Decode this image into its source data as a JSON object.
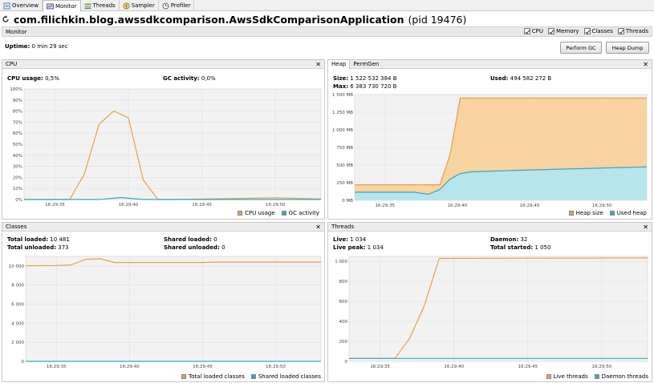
{
  "tabs": [
    {
      "label": "Overview",
      "icon": "overview-icon"
    },
    {
      "label": "Monitor",
      "icon": "monitor-icon",
      "active": true
    },
    {
      "label": "Threads",
      "icon": "threads-icon"
    },
    {
      "label": "Sampler",
      "icon": "sampler-icon"
    },
    {
      "label": "Profiler",
      "icon": "profiler-icon"
    }
  ],
  "app": {
    "name": "com.filichkin.blog.awssdkcomparison.AwsSdkComparisonApplication",
    "pid": "(pid 19476)"
  },
  "monitor": {
    "label": "Monitor",
    "checks": [
      "CPU",
      "Memory",
      "Classes",
      "Threads"
    ],
    "uptime_label": "Uptime:",
    "uptime_value": "0 min 29 sec",
    "perform_gc": "Perform GC",
    "heap_dump": "Heap Dump"
  },
  "colors": {
    "orange": "#e8a050",
    "orange_fill": "#f9cf97",
    "blue": "#3aa5c2",
    "blue_fill": "#aee7f3",
    "plot_bg": "#f2f2f2",
    "grid": "#e0e0e0"
  },
  "cpu_panel": {
    "title": "CPU",
    "usage_label": "CPU usage:",
    "usage_value": "0,5%",
    "gc_label": "GC activity:",
    "gc_value": "0,0%",
    "legend": [
      "CPU usage",
      "GC activity"
    ]
  },
  "heap_panel": {
    "tabs": [
      "Heap",
      "PermGen"
    ],
    "size_label": "Size:",
    "size_value": "1 522 532 384 B",
    "max_label": "Max:",
    "max_value": "6 383 730 720 B",
    "used_label": "Used:",
    "used_value": "494 582 272 B",
    "legend": [
      "Heap size",
      "Used heap"
    ]
  },
  "classes_panel": {
    "title": "Classes",
    "total_loaded_label": "Total loaded:",
    "total_loaded_value": "10 481",
    "total_unloaded_label": "Total unloaded:",
    "total_unloaded_value": "373",
    "shared_loaded_label": "Shared loaded:",
    "shared_loaded_value": "0",
    "shared_unloaded_label": "Shared unloaded:",
    "shared_unloaded_value": "0",
    "legend": [
      "Total loaded classes",
      "Shared loaded classes"
    ]
  },
  "threads_panel": {
    "title": "Threads",
    "live_label": "Live:",
    "live_value": "1 034",
    "live_peak_label": "Live peak:",
    "live_peak_value": "1 034",
    "daemon_label": "Daemon:",
    "daemon_value": "32",
    "total_started_label": "Total started:",
    "total_started_value": "1 050",
    "legend": [
      "Live threads",
      "Daemon threads"
    ]
  },
  "chart_data": [
    {
      "id": "cpu",
      "type": "line",
      "x_ticks": [
        "16:29:35",
        "16:29:40",
        "16:29:45",
        "16:29:50"
      ],
      "x_tick_seconds": [
        35,
        40,
        45,
        50
      ],
      "xlim": [
        32.9,
        53.1
      ],
      "ylim": [
        0,
        100
      ],
      "y_ticks": [
        0,
        10,
        20,
        30,
        40,
        50,
        60,
        70,
        80,
        90,
        100
      ],
      "y_tick_labels": [
        "0%",
        "10%",
        "20%",
        "30%",
        "40%",
        "50%",
        "60%",
        "70%",
        "80%",
        "90%",
        "100%"
      ],
      "series": [
        {
          "name": "CPU usage",
          "color": "#e8a050",
          "x": [
            32.9,
            36,
            37,
            38,
            39,
            40,
            41,
            42,
            43,
            50,
            53.1
          ],
          "y": [
            0,
            0,
            23,
            68,
            80,
            74,
            18,
            0,
            0,
            1.5,
            0.5
          ]
        },
        {
          "name": "GC activity",
          "color": "#3aa5c2",
          "x": [
            32.9,
            38,
            39.5,
            41,
            53.1
          ],
          "y": [
            0,
            0,
            1.8,
            0,
            0
          ]
        }
      ]
    },
    {
      "id": "heap",
      "type": "area",
      "x_ticks": [
        "16:29:35",
        "16:29:40",
        "16:29:45",
        "16:29:50"
      ],
      "x_tick_seconds": [
        35,
        40,
        45,
        50
      ],
      "xlim": [
        32.9,
        53.1
      ],
      "ylim": [
        0,
        1500
      ],
      "y_ticks": [
        0,
        250,
        500,
        750,
        1000,
        1250,
        1500
      ],
      "y_tick_labels": [
        "0 MB",
        "250 MB",
        "500 MB",
        "750 MB",
        "1 000 MB",
        "1 250 MB",
        "1 500 MB"
      ],
      "series": [
        {
          "name": "Heap size",
          "color": "#e8a050",
          "fill": "#f9cf97",
          "x": [
            32.9,
            38.8,
            39.5,
            40.2,
            53.1
          ],
          "y": [
            220,
            220,
            650,
            1450,
            1450
          ]
        },
        {
          "name": "Used heap",
          "color": "#3aa5c2",
          "fill": "#aee7f3",
          "x": [
            32.9,
            37,
            38,
            38.8,
            39.5,
            40.2,
            41,
            44,
            53.1
          ],
          "y": [
            115,
            115,
            85,
            155,
            300,
            380,
            405,
            425,
            475
          ]
        }
      ]
    },
    {
      "id": "classes",
      "type": "line",
      "x_ticks": [
        "16:29:35",
        "16:29:40",
        "16:29:45",
        "16:29:50"
      ],
      "x_tick_seconds": [
        35,
        40,
        45,
        50
      ],
      "xlim": [
        32.9,
        53.1
      ],
      "ylim": [
        0,
        11000
      ],
      "y_ticks": [
        0,
        2000,
        4000,
        6000,
        8000,
        10000
      ],
      "y_tick_labels": [
        "0",
        "2 000",
        "4 000",
        "6 000",
        "8 000",
        "10 000"
      ],
      "series": [
        {
          "name": "Total loaded classes",
          "color": "#e8a050",
          "x": [
            32.9,
            35,
            36,
            37,
            38,
            39,
            45,
            46,
            53.1
          ],
          "y": [
            10030,
            10050,
            10100,
            10700,
            10750,
            10360,
            10360,
            10400,
            10400
          ]
        },
        {
          "name": "Shared loaded classes",
          "color": "#3aa5c2",
          "x": [
            32.9,
            53.1
          ],
          "y": [
            0,
            0
          ]
        }
      ]
    },
    {
      "id": "threads",
      "type": "line",
      "x_ticks": [
        "16:29:35",
        "16:29:40",
        "16:29:45",
        "16:29:50"
      ],
      "x_tick_seconds": [
        35,
        40,
        45,
        50
      ],
      "xlim": [
        32.9,
        53.1
      ],
      "ylim": [
        0,
        1050
      ],
      "y_ticks": [
        0,
        200,
        400,
        600,
        800,
        1000
      ],
      "y_tick_labels": [
        "0",
        "200",
        "400",
        "600",
        "800",
        "1 000"
      ],
      "series": [
        {
          "name": "Live threads",
          "color": "#e8a050",
          "x": [
            32.9,
            36,
            37,
            38,
            39,
            53.1
          ],
          "y": [
            30,
            30,
            230,
            560,
            1030,
            1034
          ]
        },
        {
          "name": "Daemon threads",
          "color": "#3aa5c2",
          "x": [
            32.9,
            53.1
          ],
          "y": [
            30,
            30
          ]
        }
      ]
    }
  ]
}
